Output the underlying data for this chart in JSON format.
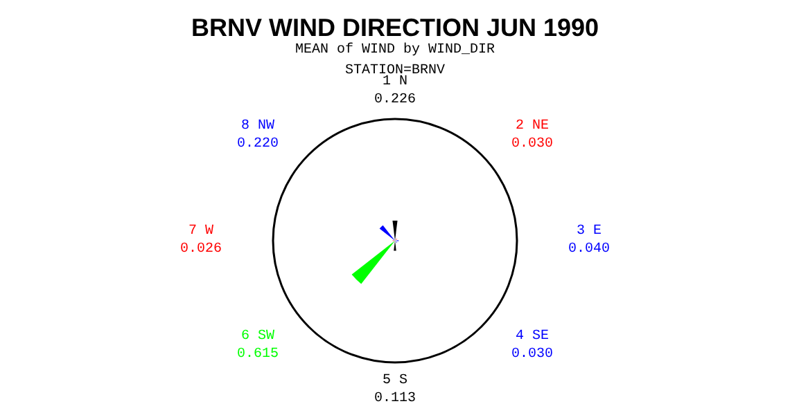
{
  "chart_data": {
    "type": "other",
    "title": "BRNV WIND DIRECTION JUN 1990",
    "subtitle": "MEAN of WIND by WIND_DIR",
    "annotations": [
      "STATION=BRNV"
    ],
    "categories": [
      "1 N",
      "2 NE",
      "3 E",
      "4 SE",
      "5 S",
      "6 SW",
      "7 W",
      "8 NW"
    ],
    "values": [
      0.226,
      0.03,
      0.04,
      0.03,
      0.113,
      0.615,
      0.026,
      0.22
    ],
    "value_labels": [
      "0.226",
      "0.030",
      "0.040",
      "0.030",
      "0.113",
      "0.615",
      "0.026",
      "0.220"
    ],
    "colors": [
      "#000000",
      "#ff0000",
      "#0000ff",
      "#0000ff",
      "#000000",
      "#00ff00",
      "#ff0000",
      "#0000ff"
    ]
  }
}
